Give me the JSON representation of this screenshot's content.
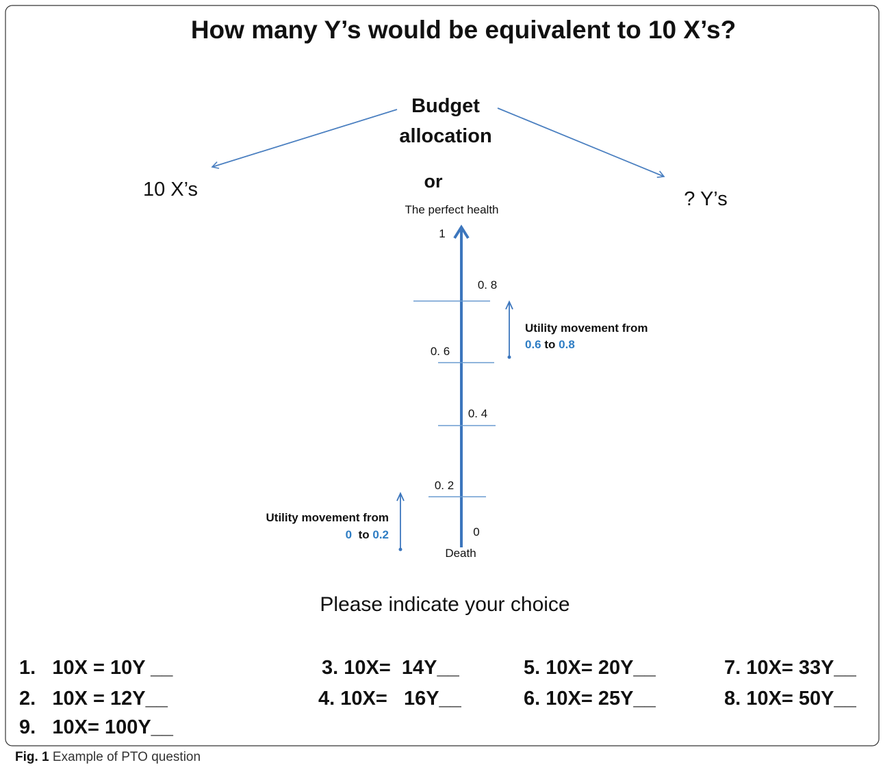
{
  "title": "How many Y’s would be equivalent to 10 X’s?",
  "budget": [
    "Budget",
    "allocation"
  ],
  "left_option": "10 X’s",
  "right_option": "? Y’s",
  "or": "or",
  "scale": {
    "top_label": "The perfect health",
    "bottom_label": "Death",
    "ticks": [
      "1",
      "0. 8",
      "0. 6",
      "0. 4",
      "0. 2",
      "0"
    ]
  },
  "annotation_upper": {
    "text": "Utility movement from",
    "from": "0.6",
    "to": "to",
    "end": "0.8"
  },
  "annotation_lower": {
    "text": "Utility movement from",
    "from": "0",
    "to": "to",
    "end": "0.2"
  },
  "prompt": "Please indicate your choice",
  "choices": [
    "1.   10X = 10Y __",
    "2.   10X = 12Y__",
    "9.   10X= 100Y__",
    "3. 10X=  14Y__",
    "4. 10X=   16Y__",
    "5. 10X= 20Y__",
    "6. 10X= 25Y__",
    "7. 10X= 33Y__",
    "8. 10X= 50Y__"
  ],
  "caption": {
    "label": "Fig. 1",
    "text": "Example of PTO question"
  }
}
